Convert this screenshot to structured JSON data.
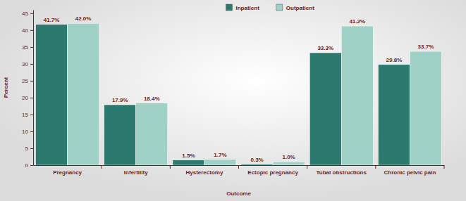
{
  "chart_data": {
    "type": "bar",
    "x_label": "Outcome",
    "y_label": "Percent",
    "categories": [
      "Pregnancy",
      "Infertility",
      "Hysterectomy",
      "Ectopic pregnancy",
      "Tubal obstructions",
      "Chronic pelvic pain"
    ],
    "series": [
      {
        "name": "Inpatient",
        "color": "#2c7a6e",
        "values": [
          41.7,
          17.9,
          1.5,
          0.3,
          33.3,
          29.8
        ],
        "value_labels": [
          "41.7%",
          "17.9%",
          "1.5%",
          "0.3%",
          "33.3%",
          "29.8%"
        ]
      },
      {
        "name": "Outpatient",
        "color": "#9fd1c7",
        "values": [
          42.0,
          18.4,
          1.7,
          1.0,
          41.2,
          33.7
        ],
        "value_labels": [
          "42.0%",
          "18.4%",
          "1.7%",
          "1.0%",
          "41.2%",
          "33.7%"
        ]
      }
    ],
    "ylim": [
      0,
      46
    ],
    "yticks": [
      0,
      5,
      10,
      15,
      20,
      25,
      30,
      35,
      40,
      45
    ],
    "grid": false,
    "legend": "top",
    "data_labels": true
  }
}
